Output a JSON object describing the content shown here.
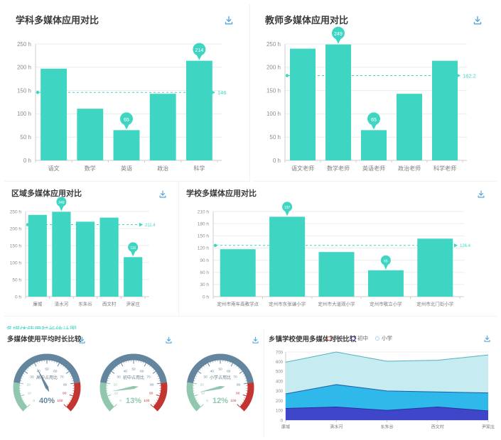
{
  "colors": {
    "accent": "#3ed6c3",
    "bar": "#3ed6c3",
    "download_icon": "#54a8dc",
    "title_text": "#3a3a3a",
    "axis_text": "#8c8c8c",
    "category_text": "#7b7b7b",
    "grid_line": "#ececec",
    "axis_line": "#cccccc",
    "balloon_text": "#ffffff",
    "gauge_green": "#91c7ae",
    "gauge_slate": "#63869e",
    "gauge_red": "#c23531",
    "gauge_title_text": "#6b7a84",
    "area_fills": [
      "#3f46c9",
      "#2fb9ea",
      "#c6ebf1"
    ],
    "area_strokes": [
      "#2a2f9e",
      "#1b5fa8",
      "#55b0c0"
    ],
    "legend_rings": [
      "#e06c65",
      "#3f46c9",
      "#a3dae8"
    ]
  },
  "section_title": "多媒体使用时长统计图",
  "chart_data": [
    {
      "type": "bar",
      "title": "学科多媒体应用对比",
      "unit": "h",
      "categories": [
        "语文",
        "数学",
        "英语",
        "政治",
        "科学"
      ],
      "values": [
        197,
        111,
        65,
        143,
        214
      ],
      "ylim": [
        0,
        250
      ],
      "ytick_step": 50,
      "average_line": 146,
      "average_label": "146",
      "marked_indices": [
        2,
        4
      ],
      "grid": true,
      "legend_position": null
    },
    {
      "type": "bar",
      "title": "教师多媒体应用对比",
      "unit": "h",
      "categories": [
        "语文老师",
        "数学老师",
        "英语老师",
        "政治老师",
        "科学老师"
      ],
      "values": [
        240,
        249,
        65,
        143,
        214
      ],
      "ylim": [
        0,
        250
      ],
      "ytick_step": 50,
      "average_line": 182.2,
      "average_label": "182.2",
      "marked_indices": [
        1,
        2
      ],
      "grid": true,
      "legend_position": null
    },
    {
      "type": "bar",
      "title": "区域多媒体应用对比",
      "unit": "h",
      "categories": [
        "廉城",
        "清水河",
        "东朱谷",
        "西文村",
        "尹家庄"
      ],
      "values": [
        240,
        249,
        220,
        232,
        116
      ],
      "ylim": [
        0,
        250
      ],
      "ytick_step": 50,
      "average_line": 211.4,
      "average_label": "211.4",
      "marked_indices": [
        1,
        4
      ],
      "grid": true,
      "legend_position": null
    },
    {
      "type": "bar",
      "title": "学校多媒体应用对比",
      "unit": "h",
      "categories": [
        "定州市南车高教学点",
        "定州市东张谦小学",
        "定州市大道观小学",
        "定州市敬立小学",
        "定州市北门街小学"
      ],
      "values": [
        117,
        197,
        110,
        65,
        143
      ],
      "ylim": [
        0,
        210
      ],
      "ytick_step": 30,
      "average_line": 126.4,
      "average_label": "126.4",
      "marked_indices": [
        1,
        3
      ],
      "grid": true,
      "legend_position": null
    },
    {
      "type": "gauge",
      "title": "多媒体使用平均时长比较",
      "ylim": [
        0,
        100
      ],
      "tick_step": 10,
      "zones": [
        {
          "to": 20,
          "color_key": "gauge_green"
        },
        {
          "to": 80,
          "color_key": "gauge_slate"
        },
        {
          "to": 100,
          "color_key": "gauge_red"
        }
      ],
      "items": [
        {
          "label": "高中占用比",
          "value": 40,
          "display": "40%"
        },
        {
          "label": "初中占用比",
          "value": 13,
          "display": "13%"
        },
        {
          "label": "小学占用比",
          "value": 12,
          "display": "12%"
        }
      ]
    },
    {
      "type": "area",
      "stacked": true,
      "title": "乡镇学校使用多媒体时长比较",
      "categories": [
        "廉城",
        "清水河",
        "东朱谷",
        "西文村",
        "尹家庄"
      ],
      "series": [
        {
          "name": "高中",
          "values": [
            120,
            135,
            100,
            135,
            95
          ]
        },
        {
          "name": "初中",
          "values": [
            150,
            230,
            200,
            155,
            185
          ]
        },
        {
          "name": "小学",
          "values": [
            325,
            335,
            305,
            325,
            390
          ]
        }
      ],
      "ylim": [
        0,
        700
      ],
      "ytick_step": 100,
      "legend_position": "top",
      "grid": true
    }
  ]
}
